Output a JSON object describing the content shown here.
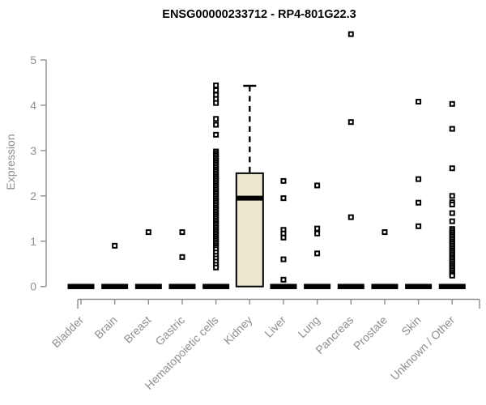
{
  "title": "ENSG00000233712 - RP4-801G22.3",
  "chart_data": {
    "type": "boxplot",
    "title": "ENSG00000233712 - RP4-801G22.3",
    "xlabel": "",
    "ylabel": "Expression",
    "ylim": [
      0,
      5
    ],
    "yticks": [
      0,
      1,
      2,
      3,
      4,
      5
    ],
    "grid": false,
    "legend": "none",
    "marker": "open-square",
    "colors": {
      "box_fill": "#ede8cf",
      "box_border": "#000000",
      "marker": "#000000",
      "axis": "#8e8e8e"
    },
    "categories": [
      "Bladder",
      "Brain",
      "Breast",
      "Gastric",
      "Hematopoietic cells",
      "Kidney",
      "Liver",
      "Lung",
      "Pancreas",
      "Prostate",
      "Skin",
      "Unknown / Other"
    ],
    "series": [
      {
        "label": "Bladder",
        "box": {
          "q1": 0,
          "median": 0,
          "q3": 0,
          "whisker_low": 0,
          "whisker_high": 0
        },
        "points": []
      },
      {
        "label": "Brain",
        "box": {
          "q1": 0,
          "median": 0,
          "q3": 0,
          "whisker_low": 0,
          "whisker_high": 0
        },
        "points": [
          0.9
        ]
      },
      {
        "label": "Breast",
        "box": {
          "q1": 0,
          "median": 0,
          "q3": 0,
          "whisker_low": 0,
          "whisker_high": 0
        },
        "points": [
          1.2
        ]
      },
      {
        "label": "Gastric",
        "box": {
          "q1": 0,
          "median": 0,
          "q3": 0,
          "whisker_low": 0,
          "whisker_high": 0
        },
        "points": [
          1.2,
          0.65
        ]
      },
      {
        "label": "Hematopoietic cells",
        "box": {
          "q1": 0,
          "median": 0,
          "q3": 0,
          "whisker_low": 0,
          "whisker_high": 0
        },
        "points": [
          4.44,
          4.33,
          4.23,
          4.14,
          4.05,
          3.7,
          3.57,
          3.35,
          2.98,
          2.94,
          2.9,
          2.86,
          2.82,
          2.78,
          2.74,
          2.7,
          2.66,
          2.62,
          2.58,
          2.54,
          2.5,
          2.46,
          2.42,
          2.38,
          2.34,
          2.3,
          2.26,
          2.22,
          2.18,
          2.14,
          2.1,
          2.06,
          2.02,
          1.98,
          1.94,
          1.9,
          1.86,
          1.82,
          1.78,
          1.74,
          1.7,
          1.66,
          1.62,
          1.58,
          1.54,
          1.5,
          1.46,
          1.42,
          1.38,
          1.34,
          1.3,
          1.26,
          1.22,
          1.18,
          1.14,
          1.1,
          1.06,
          1.02,
          0.98,
          0.94,
          0.9,
          0.86,
          0.82,
          0.75,
          0.68,
          0.62,
          0.55,
          0.48,
          0.42
        ]
      },
      {
        "label": "Kidney",
        "box": {
          "q1": 0,
          "median": 1.95,
          "q3": 2.5,
          "whisker_low": 0,
          "whisker_high": 4.43
        },
        "points": []
      },
      {
        "label": "Liver",
        "box": {
          "q1": 0,
          "median": 0,
          "q3": 0,
          "whisker_low": 0,
          "whisker_high": 0
        },
        "points": [
          2.33,
          1.95,
          1.25,
          1.17,
          1.08,
          0.6,
          0.15
        ]
      },
      {
        "label": "Lung",
        "box": {
          "q1": 0,
          "median": 0,
          "q3": 0,
          "whisker_low": 0,
          "whisker_high": 0
        },
        "points": [
          2.23,
          1.28,
          1.17,
          0.73
        ]
      },
      {
        "label": "Pancreas",
        "box": {
          "q1": 0,
          "median": 0,
          "q3": 0,
          "whisker_low": 0,
          "whisker_high": 0
        },
        "points": [
          5.57,
          3.63,
          1.53
        ]
      },
      {
        "label": "Prostate",
        "box": {
          "q1": 0,
          "median": 0,
          "q3": 0,
          "whisker_low": 0,
          "whisker_high": 0
        },
        "points": [
          1.2
        ]
      },
      {
        "label": "Skin",
        "box": {
          "q1": 0,
          "median": 0,
          "q3": 0,
          "whisker_low": 0,
          "whisker_high": 0
        },
        "points": [
          4.08,
          2.37,
          1.85,
          1.33
        ]
      },
      {
        "label": "Unknown / Other",
        "box": {
          "q1": 0,
          "median": 0,
          "q3": 0,
          "whisker_low": 0,
          "whisker_high": 0
        },
        "points": [
          4.03,
          3.48,
          2.61,
          2.0,
          1.86,
          1.81,
          1.62,
          1.44,
          1.27,
          1.23,
          1.19,
          1.15,
          1.11,
          1.07,
          1.03,
          0.99,
          0.95,
          0.91,
          0.87,
          0.83,
          0.79,
          0.75,
          0.71,
          0.67,
          0.63,
          0.59,
          0.55,
          0.51,
          0.47,
          0.43,
          0.39,
          0.35,
          0.31,
          0.27,
          0.24
        ]
      }
    ]
  }
}
